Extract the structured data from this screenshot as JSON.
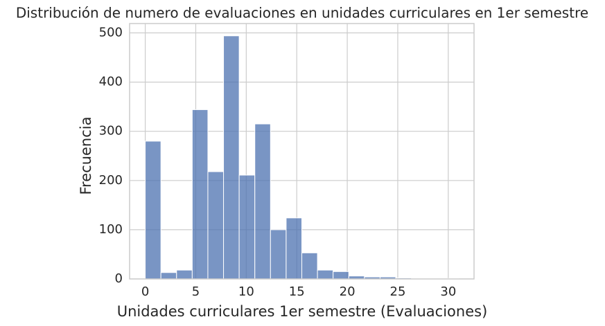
{
  "chart_data": {
    "type": "histogram",
    "title": "Distribución de numero de evaluaciones en unidades curriculares en 1er semestre",
    "x_label": "Unidades curriculares 1er semestre (Evaluaciones)",
    "y_label": "Frecuencia",
    "bins": [
      0,
      1.55,
      3.1,
      4.65,
      6.2,
      7.75,
      9.3,
      10.85,
      12.4,
      13.95,
      15.5,
      17.05,
      18.6,
      20.15,
      21.7,
      23.25,
      24.8,
      26.35,
      27.9,
      29.45,
      31
    ],
    "values": [
      280,
      13,
      18,
      344,
      218,
      494,
      211,
      315,
      100,
      124,
      53,
      18,
      15,
      6,
      4,
      4,
      2,
      1,
      1,
      1
    ],
    "color": "#4c72b0",
    "xlim": [
      -1.55,
      32.55
    ],
    "xticks": [
      0,
      5,
      10,
      15,
      20,
      25,
      30
    ],
    "ylim": [
      0,
      519
    ],
    "yticks": [
      0,
      100,
      200,
      300,
      400,
      500
    ],
    "grid": true
  }
}
